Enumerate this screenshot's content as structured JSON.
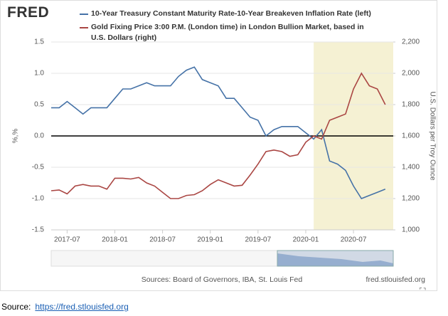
{
  "chart_data": {
    "type": "line",
    "logo": "FRED",
    "x": [
      "2017-05",
      "2017-06",
      "2017-07",
      "2017-08",
      "2017-09",
      "2017-10",
      "2017-11",
      "2017-12",
      "2018-01",
      "2018-02",
      "2018-03",
      "2018-04",
      "2018-05",
      "2018-06",
      "2018-07",
      "2018-08",
      "2018-09",
      "2018-10",
      "2018-11",
      "2018-12",
      "2019-01",
      "2019-02",
      "2019-03",
      "2019-04",
      "2019-05",
      "2019-06",
      "2019-07",
      "2019-08",
      "2019-09",
      "2019-10",
      "2019-11",
      "2019-12",
      "2020-01",
      "2020-02",
      "2020-03",
      "2020-04",
      "2020-05",
      "2020-06",
      "2020-07",
      "2020-08",
      "2020-09",
      "2020-10",
      "2020-11"
    ],
    "series": [
      {
        "name": "10-Year Treasury Constant Maturity Rate-10-Year Breakeven Inflation Rate (left)",
        "color": "#4572a7",
        "values": [
          0.45,
          0.45,
          0.55,
          0.45,
          0.35,
          0.45,
          0.45,
          0.45,
          0.6,
          0.75,
          0.75,
          0.8,
          0.85,
          0.8,
          0.8,
          0.8,
          0.95,
          1.05,
          1.1,
          0.9,
          0.85,
          0.8,
          0.6,
          0.6,
          0.45,
          0.3,
          0.25,
          0.0,
          0.1,
          0.15,
          0.15,
          0.15,
          0.05,
          -0.05,
          0.1,
          -0.4,
          -0.45,
          -0.55,
          -0.8,
          -1.0,
          -0.95,
          -0.9,
          -0.85
        ]
      },
      {
        "name": "Gold Fixing Price 3:00 P.M. (London time) in London Bullion Market, based in U.S. Dollars (right)",
        "color": "#aa4643",
        "axis": "y2",
        "values": [
          1250,
          1255,
          1230,
          1280,
          1290,
          1280,
          1280,
          1260,
          1330,
          1330,
          1325,
          1335,
          1300,
          1280,
          1240,
          1200,
          1200,
          1220,
          1225,
          1250,
          1290,
          1320,
          1300,
          1280,
          1285,
          1350,
          1420,
          1500,
          1510,
          1500,
          1470,
          1480,
          1560,
          1600,
          1580,
          1700,
          1720,
          1740,
          1900,
          2000,
          1920,
          1900,
          1800
        ]
      }
    ],
    "xlim": [
      "2017-05",
      "2020-12"
    ],
    "xticks": [
      "2017-07",
      "2018-01",
      "2018-07",
      "2019-01",
      "2019-07",
      "2020-01",
      "2020-07"
    ],
    "ylim": [
      -1.5,
      1.5
    ],
    "yticks": [
      -1.5,
      {
        "value": -1,
        "label": "-1.0"
      },
      -0.5,
      {
        "value": 0,
        "label": "0.0"
      },
      0.5,
      {
        "value": 1,
        "label": "1.0"
      },
      1.5
    ],
    "y2lim": [
      1000,
      2200
    ],
    "y2ticks": [
      {
        "value": 1000,
        "label": "1,000"
      },
      {
        "value": 1200,
        "label": "1,200"
      },
      {
        "value": 1400,
        "label": "1,400"
      },
      {
        "value": 1600,
        "label": "1,600"
      },
      {
        "value": 1800,
        "label": "1,800"
      },
      {
        "value": 2000,
        "label": "2,000"
      },
      {
        "value": 2200,
        "label": "2,200"
      }
    ],
    "ylabel": "%,%",
    "y2label": "U.S. Dollars per Troy Ounce",
    "shade": [
      "2020-02",
      "2020-12"
    ],
    "shade_color": "#f5f1d3",
    "zero_line": true,
    "grid": true,
    "navigator_labels": [
      "1980",
      "2000"
    ],
    "note": "Sources: Board of Governors, IBA, St. Louis Fed",
    "credit": "fred.stlouisfed.org",
    "source_label": "Source:",
    "source_link": "https://fred.stlouisfed.org"
  }
}
